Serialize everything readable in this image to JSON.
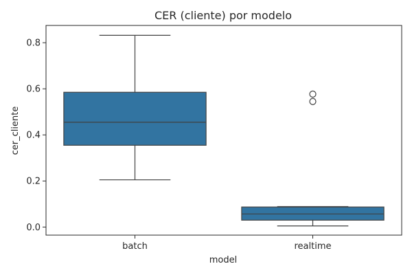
{
  "chart_data": {
    "type": "box",
    "title": "CER (cliente) por modelo",
    "xlabel": "model",
    "ylabel": "cer_cliente",
    "categories": [
      "batch",
      "realtime"
    ],
    "ylim": [
      -0.035,
      0.875
    ],
    "yticks": [
      "0.0",
      "0.2",
      "0.4",
      "0.6",
      "0.8"
    ],
    "ytick_values": [
      0.0,
      0.2,
      0.4,
      0.6,
      0.8
    ],
    "grid": false,
    "legend": "none",
    "box_color": "#3274a1",
    "line_color": "#404040",
    "boxes": [
      {
        "category": "batch",
        "whisker_low": 0.205,
        "q1": 0.355,
        "median": 0.455,
        "q3": 0.585,
        "whisker_high": 0.832,
        "outliers": []
      },
      {
        "category": "realtime",
        "whisker_low": 0.005,
        "q1": 0.03,
        "median": 0.057,
        "q3": 0.087,
        "whisker_high": 0.089,
        "outliers": [
          0.545,
          0.577
        ]
      }
    ]
  }
}
